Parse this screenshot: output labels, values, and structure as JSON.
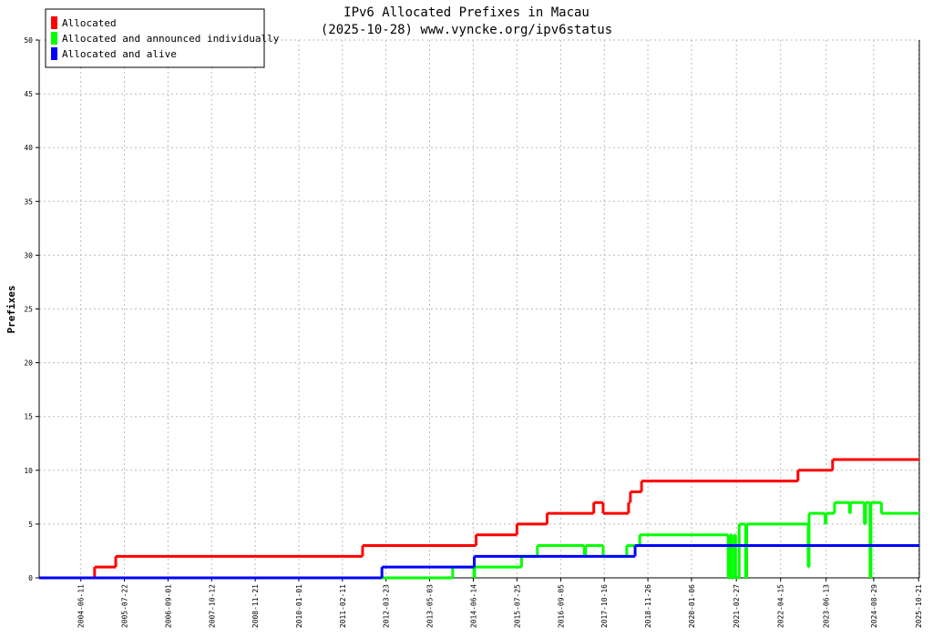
{
  "chart_data": {
    "type": "line",
    "step": "post",
    "title": "IPv6 Allocated Prefixes in Macau",
    "subtitle": "(2025-10-28) www.vyncke.org/ipv6status",
    "y_label": "Prefixes",
    "xlim": [
      "2003-05-20",
      "2025-10-28"
    ],
    "xticks": [
      "2004-06-11",
      "2005-07-22",
      "2006-09-01",
      "2007-10-12",
      "2008-11-21",
      "2010-01-01",
      "2011-02-11",
      "2012-03-23",
      "2013-05-03",
      "2014-06-14",
      "2015-07-25",
      "2016-09-05",
      "2017-10-16",
      "2018-11-26",
      "2020-01-06",
      "2021-02-27",
      "2022-04-15",
      "2023-06-13",
      "2024-08-29",
      "2025-10-21"
    ],
    "ylim": [
      0,
      50
    ],
    "yticks": [
      0,
      5,
      10,
      15,
      20,
      25,
      30,
      35,
      40,
      45,
      50
    ],
    "grid": true,
    "legend": "top-left",
    "series": [
      {
        "name": "Allocated",
        "color": "#ff0000",
        "x": [
          "2003-05-20",
          "2004-10-17",
          "2005-05-02",
          "2011-08-18",
          "2014-07-10",
          "2015-07-25",
          "2016-05-01",
          "2017-07-10",
          "2017-10-05",
          "2018-05-30",
          "2018-06-16",
          "2018-09-28",
          "2022-09-24",
          "2023-08-12",
          "2025-10-28"
        ],
        "values": [
          0,
          1,
          2,
          3,
          4,
          5,
          6,
          7,
          6,
          7,
          8,
          9,
          10,
          11,
          11
        ]
      },
      {
        "name": "Allocated and announced individually",
        "color": "#00ff00",
        "x": [
          "2003-05-20",
          "2013-12-04",
          "2014-06-20",
          "2014-06-27",
          "2015-09-06",
          "2016-02-01",
          "2017-04-14",
          "2017-04-25",
          "2017-10-05",
          "2018-05-13",
          "2018-09-11",
          "2020-12-13",
          "2020-12-30",
          "2021-01-15",
          "2021-02-10",
          "2021-02-20",
          "2021-03-25",
          "2021-05-25",
          "2021-06-03",
          "2022-12-28",
          "2023-01-05",
          "2023-06-04",
          "2023-06-12",
          "2023-08-30",
          "2024-01-17",
          "2024-01-25",
          "2024-06-03",
          "2024-06-15",
          "2024-07-26",
          "2024-08-03",
          "2024-11-09",
          "2025-10-28"
        ],
        "values": [
          0,
          1,
          0,
          1,
          2,
          3,
          2,
          3,
          2,
          3,
          4,
          0,
          4,
          0,
          4,
          0,
          5,
          0,
          5,
          1,
          6,
          5,
          6,
          7,
          6,
          7,
          5,
          7,
          0,
          7,
          6,
          6
        ]
      },
      {
        "name": "Allocated and alive",
        "color": "#0000ff",
        "x": [
          "2003-05-20",
          "2012-02-14",
          "2014-06-23",
          "2018-07-30",
          "2025-10-28"
        ],
        "values": [
          0,
          1,
          2,
          3,
          3
        ]
      }
    ]
  }
}
